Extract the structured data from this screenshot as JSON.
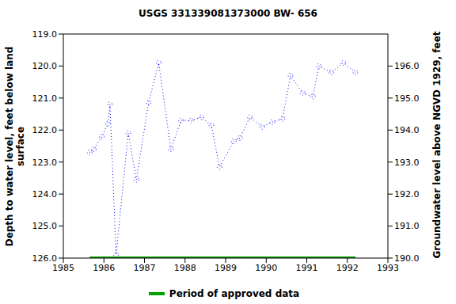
{
  "chart_data": {
    "type": "line",
    "title": "USGS 331339081373000 BW- 656",
    "x_label": "",
    "y_label": "Depth to water level, feet below land surface",
    "y2_label": "Groundwater level above NGVD 1929, feet",
    "xlim": [
      1985,
      1993
    ],
    "xticks": [
      1985,
      1986,
      1987,
      1988,
      1989,
      1990,
      1991,
      1992,
      1993
    ],
    "ylim": [
      126,
      119
    ],
    "yticks": [
      {
        "value": 119,
        "label": "119.0"
      },
      {
        "value": 120,
        "label": "120.0"
      },
      {
        "value": 121,
        "label": "121.0"
      },
      {
        "value": 122,
        "label": "122.0"
      },
      {
        "value": 123,
        "label": "123.0"
      },
      {
        "value": 124,
        "label": "124.0"
      },
      {
        "value": 125,
        "label": "125.0"
      },
      {
        "value": 126,
        "label": "126.0"
      }
    ],
    "y2lim": [
      190,
      197
    ],
    "y2ticks": [
      {
        "value": 190,
        "label": "190.0"
      },
      {
        "value": 191,
        "label": "191.0"
      },
      {
        "value": 192,
        "label": "192.0"
      },
      {
        "value": 193,
        "label": "193.0"
      },
      {
        "value": 194,
        "label": "194.0"
      },
      {
        "value": 195,
        "label": "195.0"
      },
      {
        "value": 196,
        "label": "196.0"
      }
    ],
    "grid": false,
    "legend": "bottom",
    "series": [
      {
        "color": "#0000ff",
        "line_style": "dotted",
        "marker": "circle",
        "x": [
          1985.65,
          1985.75,
          1985.95,
          1986.1,
          1986.15,
          1986.3,
          1986.6,
          1986.8,
          1987.1,
          1987.35,
          1987.65,
          1987.9,
          1988.15,
          1988.4,
          1988.65,
          1988.85,
          1989.2,
          1989.35,
          1989.6,
          1989.9,
          1990.15,
          1990.4,
          1990.6,
          1990.9,
          1991.15,
          1991.3,
          1991.6,
          1991.9,
          1992.2
        ],
        "values": [
          122.7,
          122.6,
          122.2,
          121.8,
          121.2,
          125.9,
          122.1,
          123.55,
          121.15,
          119.9,
          122.6,
          121.7,
          121.7,
          121.6,
          121.85,
          123.15,
          122.35,
          122.25,
          121.6,
          121.9,
          121.75,
          121.65,
          120.3,
          120.85,
          120.95,
          120.0,
          120.2,
          119.9,
          120.2
        ]
      },
      {
        "name": "Period of approved data",
        "color": "#00a000",
        "line_style": "solid",
        "marker": "none",
        "x": [
          1985.65,
          1992.2
        ],
        "values": [
          126,
          126
        ]
      }
    ]
  }
}
